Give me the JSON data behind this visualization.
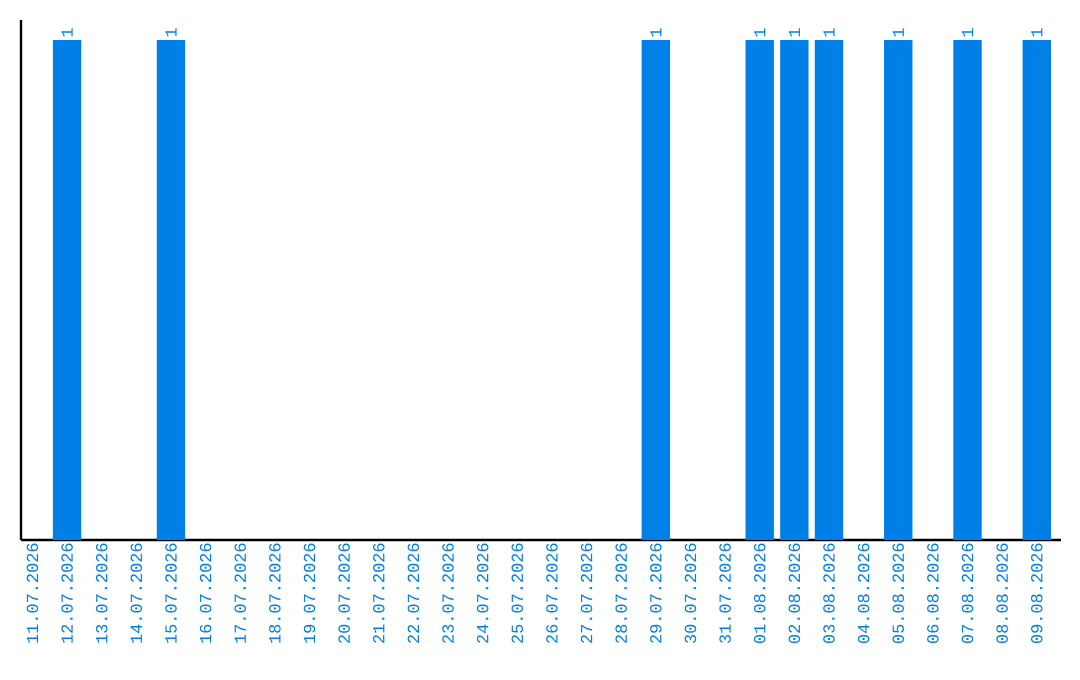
{
  "chart_data": {
    "type": "bar",
    "categories": [
      "11.07.2026",
      "12.07.2026",
      "13.07.2026",
      "14.07.2026",
      "15.07.2026",
      "16.07.2026",
      "17.07.2026",
      "18.07.2026",
      "19.07.2026",
      "20.07.2026",
      "21.07.2026",
      "22.07.2026",
      "23.07.2026",
      "24.07.2026",
      "25.07.2026",
      "26.07.2026",
      "27.07.2026",
      "28.07.2026",
      "29.07.2026",
      "30.07.2026",
      "31.07.2026",
      "01.08.2026",
      "02.08.2026",
      "03.08.2026",
      "04.08.2026",
      "05.08.2026",
      "06.08.2026",
      "07.08.2026",
      "08.08.2026",
      "09.08.2026"
    ],
    "values": [
      0,
      1,
      0,
      0,
      1,
      0,
      0,
      0,
      0,
      0,
      0,
      0,
      0,
      0,
      0,
      0,
      0,
      0,
      1,
      0,
      0,
      1,
      1,
      1,
      0,
      1,
      0,
      1,
      0,
      1
    ],
    "value_labels": [
      null,
      "1",
      null,
      null,
      "1",
      null,
      null,
      null,
      null,
      null,
      null,
      null,
      null,
      null,
      null,
      null,
      null,
      null,
      "1",
      null,
      null,
      "1",
      "1",
      "1",
      null,
      "1",
      null,
      "1",
      null,
      "1"
    ],
    "color": "#007fe6",
    "ylim": [
      0,
      1.04
    ],
    "tick_labels": "x",
    "grid": false
  }
}
